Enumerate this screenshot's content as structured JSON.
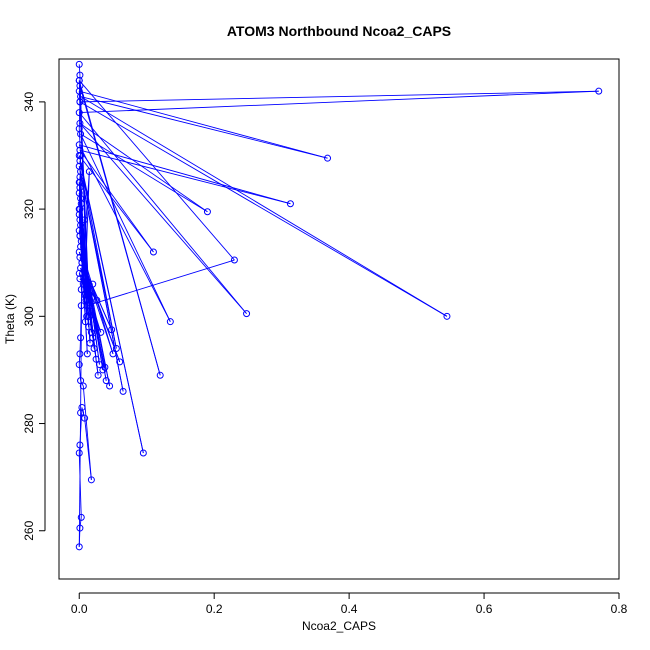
{
  "chart_data": {
    "type": "line",
    "title": "ATOM3 Northbound Ncoa2_CAPS",
    "xlabel": "Ncoa2_CAPS",
    "ylabel": "Theta (K)",
    "xlim": [
      -0.03,
      0.8
    ],
    "ylim": [
      251,
      348
    ],
    "xticks": [
      0.0,
      0.2,
      0.4,
      0.6,
      0.8
    ],
    "xtick_labels": [
      "0.0",
      "0.2",
      "0.4",
      "0.6",
      "0.8"
    ],
    "yticks": [
      260,
      280,
      300,
      320,
      340
    ],
    "ytick_labels": [
      "260",
      "280",
      "300",
      "320",
      "340"
    ],
    "grid": false,
    "series_color": "#0000ff",
    "markers": "open-circle",
    "x": [
      0.0,
      0.001,
      0.0,
      0.001,
      0.0,
      0.002,
      0.001,
      0.0,
      0.001,
      0.002,
      0.0,
      0.001,
      0.0,
      0.001,
      0.0,
      0.002,
      0.001,
      0.0,
      0.001,
      0.0,
      0.002,
      0.003,
      0.001,
      0.0,
      0.001,
      0.002,
      0.0,
      0.001,
      0.003,
      0.002,
      0.0,
      0.001,
      0.004,
      0.002,
      0.0,
      0.001,
      0.006,
      0.003,
      0.008,
      0.01,
      0.012,
      0.015,
      0.011,
      0.009,
      0.014,
      0.018,
      0.02,
      0.016,
      0.022,
      0.012,
      0.025,
      0.03,
      0.035,
      0.028,
      0.04,
      0.045,
      0.05,
      0.055,
      0.06,
      0.065,
      0.048,
      0.038,
      0.032,
      0.026,
      0.02,
      0.015,
      0.095,
      0.12,
      0.135,
      0.11,
      0.19,
      0.23,
      0.248,
      0.313,
      0.368,
      0.545,
      0.77,
      0.015,
      0.008,
      0.005,
      0.003,
      0.002,
      0.001,
      0.0,
      0.002,
      0.006,
      0.018,
      0.008,
      0.004,
      0.001,
      0.0,
      0.003,
      0.001,
      0.0,
      0.002,
      0.004,
      0.001,
      0.0,
      0.001,
      0.002,
      0.0,
      0.001,
      0.0
    ],
    "y": [
      347,
      345,
      344,
      343,
      342,
      341,
      340,
      338,
      336,
      334,
      332,
      331,
      330,
      329,
      328,
      327,
      326,
      325,
      324,
      323,
      322,
      321,
      320,
      319,
      318,
      317,
      316,
      315,
      314,
      313,
      312,
      311,
      310,
      309,
      308,
      307,
      306,
      305,
      304,
      303,
      302,
      301,
      300,
      299,
      298,
      297,
      296,
      295,
      294,
      293,
      292,
      291,
      290,
      289,
      288,
      287,
      293,
      294,
      291.5,
      286,
      297.5,
      290.5,
      297,
      303,
      306,
      300,
      274.5,
      289,
      299,
      312,
      319.5,
      310.5,
      300.5,
      321,
      329.5,
      300,
      342,
      327,
      318,
      308,
      302,
      296,
      293,
      291,
      288,
      287,
      269.5,
      281,
      283,
      276,
      274.5,
      262.5,
      260.5,
      257,
      282,
      310,
      315,
      320,
      325,
      330,
      335,
      340,
      344
    ],
    "order": [
      0,
      1,
      40,
      71,
      2,
      67,
      3,
      41,
      4,
      74,
      5,
      75,
      6,
      76,
      7,
      72,
      8,
      70,
      9,
      68,
      10,
      73,
      11,
      69,
      12,
      66,
      13,
      57,
      14,
      59,
      15,
      42,
      16,
      43,
      17,
      44,
      18,
      45,
      19,
      46,
      20,
      47,
      21,
      48,
      22,
      49,
      23,
      50,
      24,
      51,
      25,
      52,
      26,
      53,
      27,
      54,
      28,
      55,
      29,
      56,
      30,
      58,
      31,
      60,
      32,
      61,
      33,
      62,
      34,
      63,
      35,
      64,
      36,
      65,
      37,
      77,
      38,
      78,
      39,
      79,
      80,
      81,
      82,
      83,
      84,
      85,
      86,
      87,
      88,
      89,
      90,
      91,
      92,
      93,
      94,
      95,
      96,
      97,
      98,
      99,
      100,
      101,
      102
    ]
  }
}
